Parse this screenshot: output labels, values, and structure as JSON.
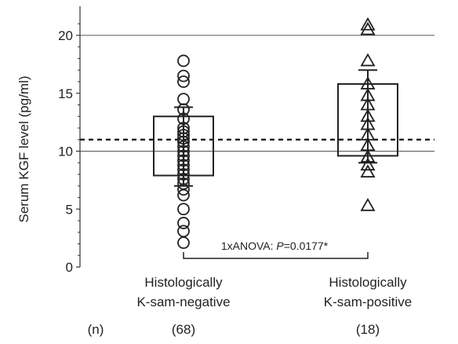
{
  "chart_data": {
    "type": "scatter",
    "ylabel": "Serum KGF level (pg/ml)",
    "ylim": [
      0,
      22
    ],
    "yticks": [
      "0",
      "5",
      "10",
      "15",
      "20"
    ],
    "grid": false,
    "legend": "none",
    "reference_lines": [
      {
        "y": 20,
        "style": "solid"
      },
      {
        "y": 10,
        "style": "solid"
      },
      {
        "y": 11,
        "style": "dashed"
      }
    ],
    "groups": [
      {
        "label_line1": "Histologically",
        "label_line2": "K-sam-negative",
        "n_label": "(68)",
        "marker": "circle",
        "box": {
          "q1": 7.9,
          "q3": 13.0
        },
        "error_bar": {
          "low": 7.0,
          "high": 13.8
        },
        "points": [
          17.8,
          16.5,
          16.0,
          14.5,
          13.6,
          12.8,
          12.0,
          11.7,
          11.4,
          11.1,
          10.8,
          10.4,
          10.0,
          9.6,
          9.2,
          8.8,
          8.4,
          8.0,
          7.6,
          7.2,
          6.7,
          6.2,
          5.0,
          3.8,
          3.1,
          2.1
        ]
      },
      {
        "label_line1": "Histologically",
        "label_line2": "K-sam-positive",
        "n_label": "(18)",
        "marker": "triangle",
        "box": {
          "q1": 9.6,
          "q3": 15.8
        },
        "error_bar": {
          "low": 9.0,
          "high": 17.0
        },
        "points": [
          20.9,
          20.5,
          17.8,
          15.8,
          14.8,
          14.0,
          13.0,
          12.3,
          11.4,
          10.5,
          9.5,
          8.8,
          8.2,
          5.3
        ]
      }
    ],
    "n_prefix": "(n)",
    "annotation": {
      "prefix": "1xANOVA: ",
      "p_symbol": "P",
      "value": "=0.0177*"
    }
  }
}
